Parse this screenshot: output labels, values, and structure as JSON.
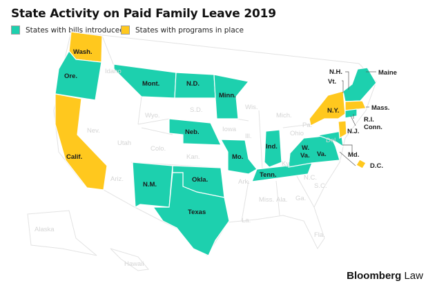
{
  "title": "State Activity on Paid Family Leave 2019",
  "legend": [
    {
      "label": "States with bills introduced",
      "color": "#1DD0AE"
    },
    {
      "label": "States with programs in place",
      "color": "#FFC81E"
    }
  ],
  "colors": {
    "bills": "#1DD0AE",
    "programs": "#FFC81E",
    "other": "#FFFFFF",
    "border": "#E6E6E6"
  },
  "states_bills": [
    "Ore.",
    "Mont.",
    "N.D.",
    "Minn.",
    "Neb.",
    "Mo.",
    "Ind.",
    "Tenn.",
    "W. Va.",
    "Va.",
    "Md.",
    "N.M.",
    "Okla.",
    "Texas",
    "Vt.",
    "N.H.",
    "Maine",
    "R.I.",
    "Conn."
  ],
  "states_programs": [
    "Wash.",
    "Calif.",
    "N.Y.",
    "Mass.",
    "N.J.",
    "D.C."
  ],
  "labels": {
    "wash": "Wash.",
    "ore": "Ore.",
    "calif": "Calif.",
    "mont": "Mont.",
    "nd": "N.D.",
    "minn": "Minn.",
    "neb": "Neb.",
    "mo": "Mo.",
    "ind": "Ind.",
    "tenn": "Tenn.",
    "wva1": "W.",
    "wva2": "Va.",
    "va": "Va.",
    "md": "Md.",
    "nm": "N.M.",
    "okla": "Okla.",
    "texas": "Texas",
    "ny": "N.Y.",
    "nh": "N.H.",
    "vt": "Vt.",
    "maine": "Maine",
    "mass": "Mass.",
    "ri": "R.I.",
    "conn": "Conn.",
    "nj": "N.J.",
    "dc": "D.C."
  },
  "other_labels": [
    "Idaho",
    "Wyo.",
    "S.D.",
    "Nev.",
    "Utah",
    "Colo.",
    "Iowa",
    "Kan.",
    "Ariz.",
    "Wis.",
    "Mich.",
    "Ill.",
    "Ohio",
    "Ky.",
    "Pa.",
    "Del.",
    "Ark.",
    "Miss.",
    "Ala.",
    "Ga.",
    "S.C.",
    "N.C.",
    "La.",
    "Fla.",
    "Alaska",
    "Hawaii"
  ],
  "footer": {
    "brand": "Bloomberg",
    "product": "Law"
  }
}
